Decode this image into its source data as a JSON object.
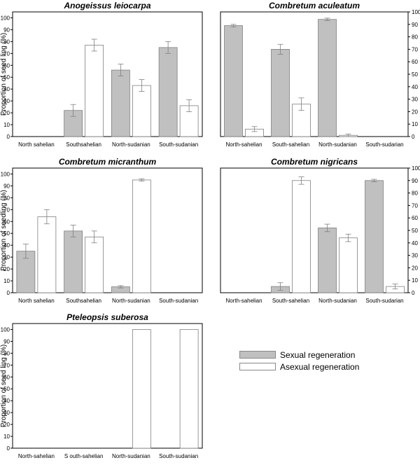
{
  "colors": {
    "sexual": "#c0c0c0",
    "asexual": "#ffffff",
    "stroke": "#808080",
    "axis": "#000000"
  },
  "legend": {
    "items": [
      {
        "label": "Sexual regeneration",
        "key": "sexual"
      },
      {
        "label": "Asexual regeneration",
        "key": "asexual"
      }
    ]
  },
  "chart_data": [
    {
      "type": "bar",
      "title": "Anogeissus leiocarpa",
      "ylabel": "Proportion of seed ling (%)",
      "yaxis_side": "left",
      "ylim": [
        0,
        105
      ],
      "yticks": [
        0,
        10,
        20,
        30,
        40,
        50,
        60,
        70,
        80,
        90,
        100
      ],
      "ytick_labels": [
        "0",
        "10",
        "20",
        "30",
        "40",
        "50",
        "60",
        "70",
        "80",
        "90",
        "100"
      ],
      "categories": [
        "North sahelian",
        "Southsahelian",
        "North-sudanian",
        "South-sudanian"
      ],
      "series": [
        {
          "name": "Sexual regeneration",
          "values": [
            0,
            22,
            56,
            75
          ],
          "errors": [
            0,
            5,
            5,
            5
          ]
        },
        {
          "name": "Asexual regeneration",
          "values": [
            0,
            77,
            43,
            26
          ],
          "errors": [
            0,
            5,
            5,
            5
          ]
        }
      ]
    },
    {
      "type": "bar",
      "title": "Combretum aculeatum",
      "ylabel": "Proportion of seed ling (%)",
      "yaxis_side": "right",
      "ylim": [
        0,
        100
      ],
      "yticks": [
        0,
        10,
        20,
        30,
        40,
        50,
        60,
        70,
        80,
        90,
        100
      ],
      "ytick_labels": [
        "0",
        "10",
        "20",
        "30",
        "40",
        "50",
        "60",
        "70",
        "80",
        "90",
        "100"
      ],
      "categories": [
        "North-sahelian",
        "South-sahelian",
        "North-sudanian",
        "South-sudarian"
      ],
      "series": [
        {
          "name": "Sexual regeneration",
          "values": [
            89,
            70,
            94,
            0
          ],
          "errors": [
            1,
            4,
            1,
            0
          ]
        },
        {
          "name": "Asexual regeneration",
          "values": [
            6,
            26,
            1,
            0
          ],
          "errors": [
            2,
            5,
            1,
            0
          ]
        }
      ]
    },
    {
      "type": "bar",
      "title": "Combretum micranthum",
      "ylabel": "Proportion of seedling (%)",
      "yaxis_side": "left",
      "ylim": [
        0,
        105
      ],
      "yticks": [
        0,
        10,
        20,
        30,
        40,
        50,
        60,
        70,
        80,
        90,
        100
      ],
      "ytick_labels": [
        "0",
        "10",
        "20",
        "30",
        "40",
        "50",
        "60",
        "70",
        "80",
        "90",
        "100"
      ],
      "categories": [
        "North sahelian",
        "Southsahelian",
        "North-sudanian",
        "South-sudanian"
      ],
      "series": [
        {
          "name": "Sexual regeneration",
          "values": [
            35,
            52,
            5,
            0
          ],
          "errors": [
            6,
            5,
            1,
            0
          ]
        },
        {
          "name": "Asexual regeneration",
          "values": [
            64,
            47,
            95,
            0
          ],
          "errors": [
            6,
            5,
            1,
            0
          ]
        }
      ]
    },
    {
      "type": "bar",
      "title": "Combretum nigricans",
      "ylabel": "Proportion of seedling (%)",
      "yaxis_side": "right",
      "ylim": [
        0,
        100
      ],
      "yticks": [
        0,
        10,
        20,
        30,
        40,
        50,
        60,
        70,
        80,
        90,
        100
      ],
      "ytick_labels": [
        "0",
        "10",
        "20",
        "30",
        "40",
        "50",
        "60",
        "70",
        "80",
        "90",
        "100"
      ],
      "categories": [
        "North-sahelian",
        "South-sahelian",
        "North-sudanian",
        "South-sudarian"
      ],
      "series": [
        {
          "name": "Sexual regeneration",
          "values": [
            0,
            5,
            52,
            90
          ],
          "errors": [
            0,
            3,
            3,
            1
          ]
        },
        {
          "name": "Asexual regeneration",
          "values": [
            0,
            90,
            44,
            5
          ],
          "errors": [
            0,
            3,
            3,
            2
          ]
        }
      ]
    },
    {
      "type": "bar",
      "title": "Pteleopsis suberosa",
      "ylabel": "Proportion of seed ling (%)",
      "yaxis_side": "left",
      "ylim": [
        0,
        105
      ],
      "yticks": [
        0,
        10,
        20,
        30,
        40,
        50,
        60,
        70,
        80,
        90,
        100
      ],
      "ytick_labels": [
        "0",
        "10",
        "20",
        "30",
        "40",
        "50",
        "60",
        "70",
        "80",
        "90",
        "100"
      ],
      "categories": [
        "North-sahelian",
        "S outh-sahelian",
        "North-sudanian",
        "South-sudanian"
      ],
      "series": [
        {
          "name": "Sexual regeneration",
          "values": [
            0,
            0,
            0,
            0
          ],
          "errors": [
            0,
            0,
            0,
            0
          ]
        },
        {
          "name": "Asexual regeneration",
          "values": [
            0,
            0,
            100,
            100
          ],
          "errors": [
            0,
            0,
            0,
            0
          ]
        }
      ]
    }
  ]
}
